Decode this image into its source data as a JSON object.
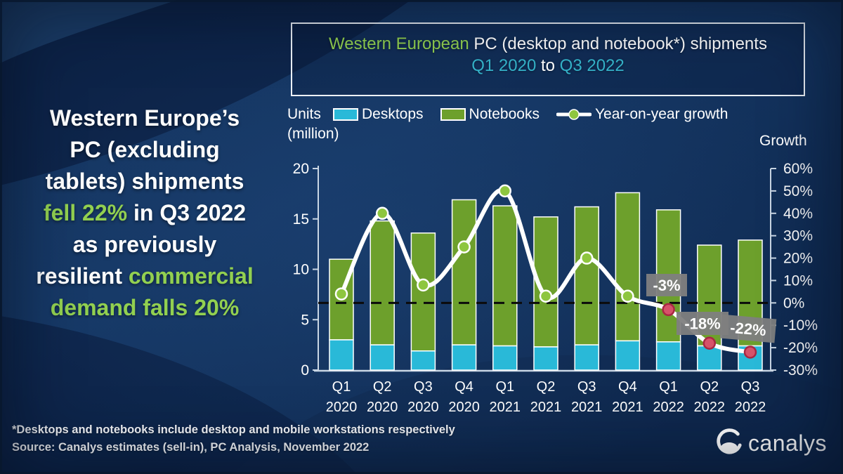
{
  "headline": {
    "lines": [
      [
        {
          "t": "Western Europe’s",
          "c": "w"
        }
      ],
      [
        {
          "t": "PC (excluding",
          "c": "w"
        }
      ],
      [
        {
          "t": "tablets) shipments",
          "c": "w"
        }
      ],
      [
        {
          "t": "fell 22%",
          "c": "g"
        },
        {
          "t": " in Q3 2022",
          "c": "w"
        }
      ],
      [
        {
          "t": "as previously",
          "c": "w"
        }
      ],
      [
        {
          "t": "resilient ",
          "c": "w"
        },
        {
          "t": "commercial",
          "c": "g"
        }
      ],
      [
        {
          "t": "demand falls 20%",
          "c": "g"
        }
      ]
    ]
  },
  "title": {
    "lines": [
      [
        {
          "t": "Western European ",
          "c": "g"
        },
        {
          "t": "PC (desktop and notebook*) shipments",
          "c": "w"
        }
      ],
      [
        {
          "t": "Q1 2020",
          "c": "c"
        },
        {
          "t": " to ",
          "c": "w"
        },
        {
          "t": "Q3 2022",
          "c": "c"
        }
      ]
    ]
  },
  "legend": {
    "units_line1": "Units",
    "units_line2": "(million)",
    "items": [
      {
        "label": "Desktops",
        "type": "swatch",
        "color": "#29b9d8"
      },
      {
        "label": "Notebooks",
        "type": "swatch",
        "color": "#6da02c"
      },
      {
        "label": "Year-on-year growth",
        "type": "line-dot",
        "color": "#8ec63f"
      }
    ]
  },
  "chart_data": {
    "type": "combo-stacked-bar-line",
    "categories": [
      "Q1 2020",
      "Q2 2020",
      "Q3 2020",
      "Q4 2020",
      "Q1 2021",
      "Q2 2021",
      "Q3 2021",
      "Q4 2021",
      "Q1 2022",
      "Q2 2022",
      "Q3 2022"
    ],
    "series": [
      {
        "name": "Desktops",
        "type": "bar",
        "color": "#29b9d8",
        "values": [
          3.0,
          2.5,
          1.9,
          2.5,
          2.4,
          2.3,
          2.5,
          2.9,
          2.8,
          2.4,
          2.4
        ]
      },
      {
        "name": "Notebooks",
        "type": "bar",
        "color": "#6da02c",
        "values": [
          8.0,
          12.3,
          11.7,
          14.4,
          13.9,
          12.9,
          13.7,
          14.7,
          13.1,
          10.0,
          10.5
        ]
      },
      {
        "name": "Year-on-year growth",
        "type": "line",
        "axis": "right",
        "color": "#ffffff",
        "values": [
          4,
          40,
          8,
          25,
          50,
          3,
          20,
          3,
          -3,
          -18,
          -22
        ]
      }
    ],
    "left_axis": {
      "label": "Units (million)",
      "min": 0,
      "max": 20,
      "ticks": [
        20,
        15,
        10,
        5,
        0
      ]
    },
    "right_axis": {
      "label": "Growth",
      "min": -30,
      "max": 60,
      "ticks": [
        "60%",
        "50%",
        "40%",
        "30%",
        "20%",
        "10%",
        "0%",
        "-10%",
        "-20%",
        "-30%"
      ],
      "format": "percent"
    },
    "zero_line": true,
    "grid": false,
    "legend_position": "top",
    "annotations": [
      {
        "index": 8,
        "text": "-3%"
      },
      {
        "index": 9,
        "text": "-18%"
      },
      {
        "index": 10,
        "text": "-22%"
      }
    ]
  },
  "footer": {
    "note": "*Desktops and notebooks include desktop and mobile workstations respectively",
    "source": "Source: Canalys estimates (sell-in), PC Analysis, November 2022"
  },
  "logo": {
    "text": "canalys"
  },
  "colors": {
    "background": "#13315c",
    "accent_green": "#92d050",
    "accent_cyan": "#35b4cb",
    "bar_desktop": "#29b9d8",
    "bar_notebook": "#6da02c",
    "growth_line": "#ffffff",
    "dot_green": "#8ec63f",
    "dot_red": "#d6536a",
    "dot_red_ring": "#a82843",
    "annotation_bg": "#7f7f7f",
    "axis": "#c9d6e4"
  }
}
